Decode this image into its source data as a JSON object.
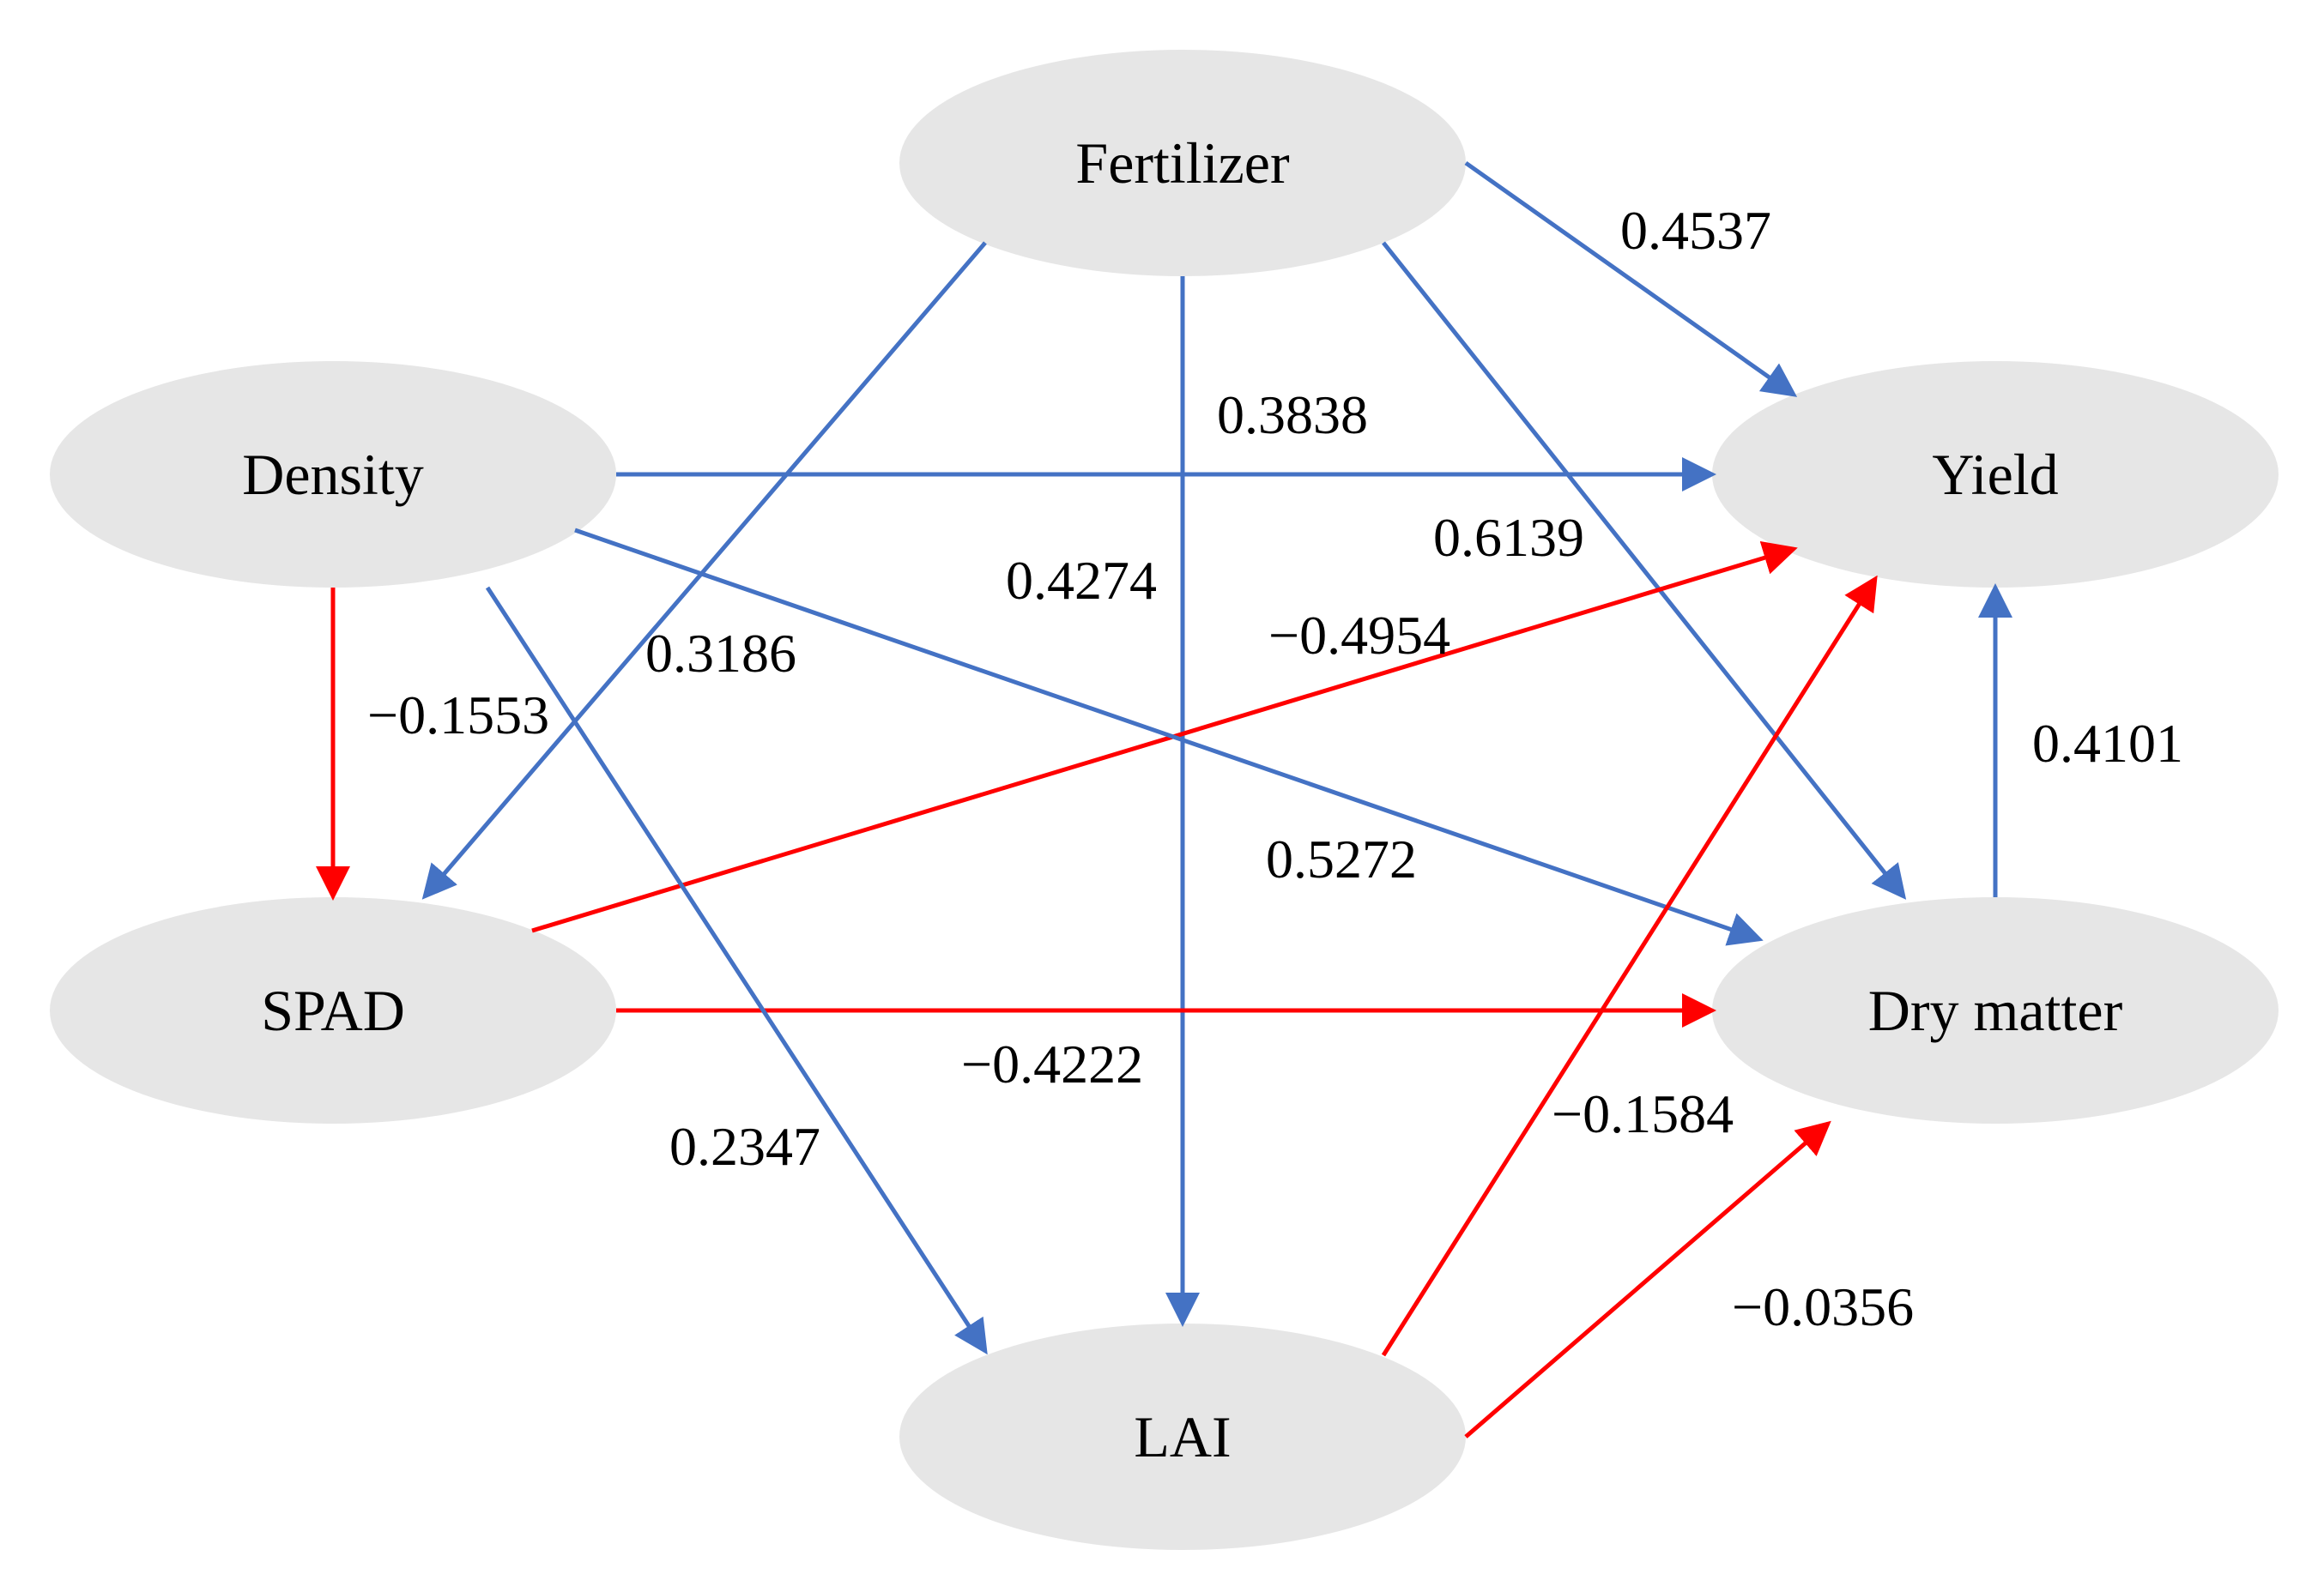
{
  "colors": {
    "positive": "#4472c4",
    "negative": "#ff0000",
    "node_fill": "#e6e6e6"
  },
  "nodes": {
    "fertilizer": {
      "label": "Fertilizer"
    },
    "density": {
      "label": "Density"
    },
    "yield": {
      "label": "Yield"
    },
    "spad": {
      "label": "SPAD"
    },
    "dry_matter": {
      "label": "Dry matter"
    },
    "lai": {
      "label": "LAI"
    }
  },
  "edges": [
    {
      "id": "fertilizer-yield",
      "from": "Fertilizer",
      "to": "Yield",
      "value": "0.4537",
      "sign": "positive"
    },
    {
      "id": "density-yield",
      "from": "Density",
      "to": "Yield",
      "value": "0.3838",
      "sign": "positive"
    },
    {
      "id": "fertilizer-dry-matter",
      "from": "Fertilizer",
      "to": "Dry matter",
      "value": "0.6139",
      "sign": "positive"
    },
    {
      "id": "fertilizer-lai",
      "from": "Fertilizer",
      "to": "LAI",
      "value": "0.4274",
      "sign": "positive"
    },
    {
      "id": "fertilizer-spad",
      "from": "Fertilizer",
      "to": "SPAD",
      "value": "0.3186",
      "sign": "positive"
    },
    {
      "id": "spad-yield",
      "from": "SPAD",
      "to": "Yield",
      "value": "−0.4954",
      "sign": "negative"
    },
    {
      "id": "density-spad",
      "from": "Density",
      "to": "SPAD",
      "value": "−0.1553",
      "sign": "negative"
    },
    {
      "id": "dry-matter-yield",
      "from": "Dry matter",
      "to": "Yield",
      "value": "0.4101",
      "sign": "positive"
    },
    {
      "id": "density-dry-matter",
      "from": "Density",
      "to": "Dry matter",
      "value": "0.5272",
      "sign": "positive"
    },
    {
      "id": "spad-dry-matter",
      "from": "SPAD",
      "to": "Dry matter",
      "value": "−0.4222",
      "sign": "negative"
    },
    {
      "id": "density-lai",
      "from": "Density",
      "to": "LAI",
      "value": "0.2347",
      "sign": "positive"
    },
    {
      "id": "lai-yield",
      "from": "LAI",
      "to": "Yield",
      "value": "−0.1584",
      "sign": "negative"
    },
    {
      "id": "lai-dry-matter",
      "from": "LAI",
      "to": "Dry matter",
      "value": "−0.0356",
      "sign": "negative"
    }
  ]
}
